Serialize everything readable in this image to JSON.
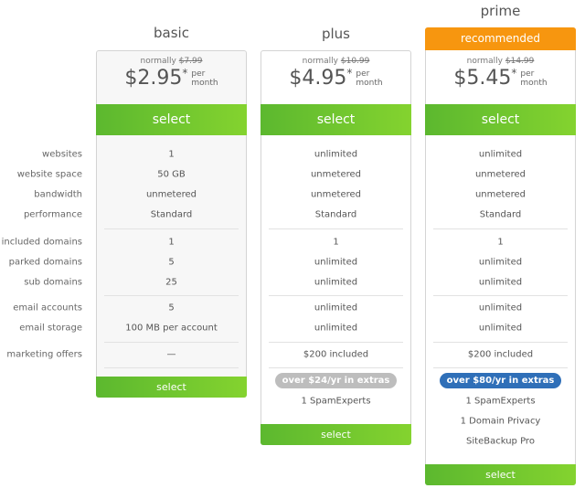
{
  "labels": [
    "websites",
    "website space",
    "bandwidth",
    "performance",
    "included domains",
    "parked domains",
    "sub domains",
    "email accounts",
    "email storage",
    "marketing offers"
  ],
  "plans": [
    {
      "name": "basic",
      "normally": "normally",
      "old_price": "$7.99",
      "price": "$2.95",
      "asterisk": "*",
      "per": "per",
      "month": "month",
      "select": "select",
      "values": [
        "1",
        "50 GB",
        "unmetered",
        "Standard",
        "1",
        "5",
        "25",
        "5",
        "100 MB per account",
        "—"
      ],
      "extras": []
    },
    {
      "name": "plus",
      "normally": "normally",
      "old_price": "$10.99",
      "price": "$4.95",
      "asterisk": "*",
      "per": "per",
      "month": "month",
      "select": "select",
      "values": [
        "unlimited",
        "unmetered",
        "unmetered",
        "Standard",
        "1",
        "unlimited",
        "unlimited",
        "unlimited",
        "unlimited",
        "$200 included"
      ],
      "badge": "over $24/yr in extras",
      "badge_color": "#bdbdbd",
      "extras": [
        "1 SpamExperts"
      ]
    },
    {
      "name": "prime",
      "recommended": "recommended",
      "normally": "normally",
      "old_price": "$14.99",
      "price": "$5.45",
      "asterisk": "*",
      "per": "per",
      "month": "month",
      "select": "select",
      "values": [
        "unlimited",
        "unmetered",
        "unmetered",
        "Standard",
        "1",
        "unlimited",
        "unlimited",
        "unlimited",
        "unlimited",
        "$200 included"
      ],
      "badge": "over $80/yr in extras",
      "badge_color": "#2f6fb8",
      "extras": [
        "1 SpamExperts",
        "1 Domain Privacy",
        "SiteBackup Pro"
      ]
    }
  ],
  "colors": {
    "green": "#6cc530",
    "orange": "#f7960f"
  }
}
